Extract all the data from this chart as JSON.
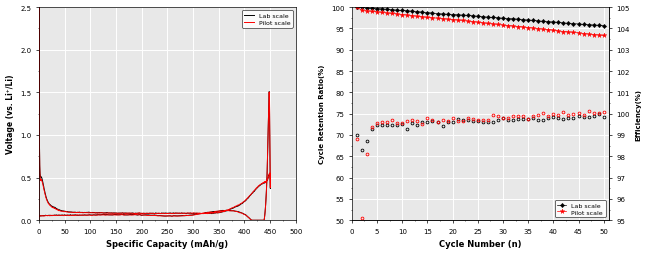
{
  "left_plot": {
    "xlabel": "Specific Capacity (mAh/g)",
    "ylabel": "Voltage (vs. Li⁺/Li)",
    "xlim": [
      0,
      500
    ],
    "ylim": [
      0.0,
      2.5
    ],
    "xticks": [
      0,
      50,
      100,
      150,
      200,
      250,
      300,
      350,
      400,
      450,
      500
    ],
    "yticks": [
      0.0,
      0.5,
      1.0,
      1.5,
      2.0,
      2.5
    ],
    "legend_labels": [
      "Lab scale",
      "Pilot scale"
    ],
    "background_color": "#e8e8e8"
  },
  "right_plot": {
    "xlabel": "Cycle Number (n)",
    "ylabel_left": "Cycle Retention Ratio(%)",
    "ylabel_right": "Efficiency(%)",
    "xlim": [
      0,
      51
    ],
    "ylim_left": [
      50,
      100
    ],
    "ylim_right": [
      95,
      105
    ],
    "xticks": [
      0,
      5,
      10,
      15,
      20,
      25,
      30,
      35,
      40,
      45,
      50
    ],
    "yticks_left": [
      50,
      55,
      60,
      65,
      70,
      75,
      80,
      85,
      90,
      95,
      100
    ],
    "yticks_right": [
      95,
      96,
      97,
      98,
      99,
      100,
      101,
      102,
      103,
      104,
      105
    ],
    "legend_labels": [
      "Lab scale",
      "Pilot scale"
    ],
    "background_color": "#e8e8e8"
  }
}
